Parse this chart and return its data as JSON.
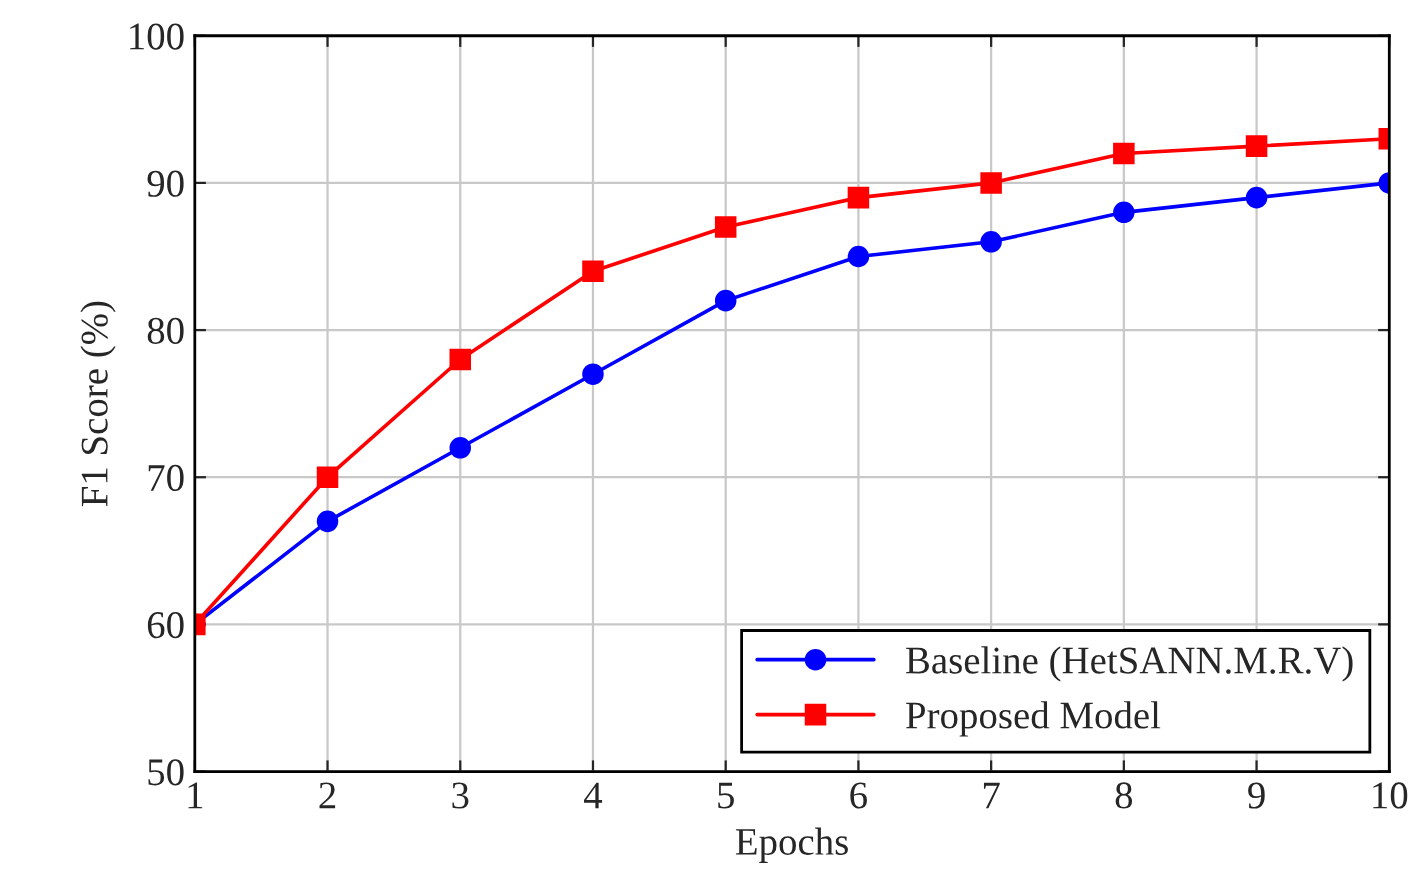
{
  "chart_data": {
    "type": "line",
    "xlabel": "Epochs",
    "ylabel": "F1 Score (%)",
    "x": [
      1,
      2,
      3,
      4,
      5,
      6,
      7,
      8,
      9,
      10
    ],
    "series": [
      {
        "name": "Baseline (HetSANN.M.R.V)",
        "color": "#0000ff",
        "marker": "circle",
        "values": [
          60,
          67,
          72,
          77,
          82,
          85,
          86,
          88,
          89,
          90
        ]
      },
      {
        "name": "Proposed Model",
        "color": "#ff0000",
        "marker": "square",
        "values": [
          60,
          70,
          78,
          84,
          87,
          89,
          90,
          92,
          92.5,
          93
        ]
      }
    ],
    "xlim": [
      1,
      10
    ],
    "xticks": [
      1,
      2,
      3,
      4,
      5,
      6,
      7,
      8,
      9,
      10
    ],
    "ylim": [
      50,
      100
    ],
    "yticks": [
      50,
      60,
      70,
      80,
      90,
      100
    ],
    "grid": true,
    "legend": "bottom right",
    "line_style": "solid"
  }
}
